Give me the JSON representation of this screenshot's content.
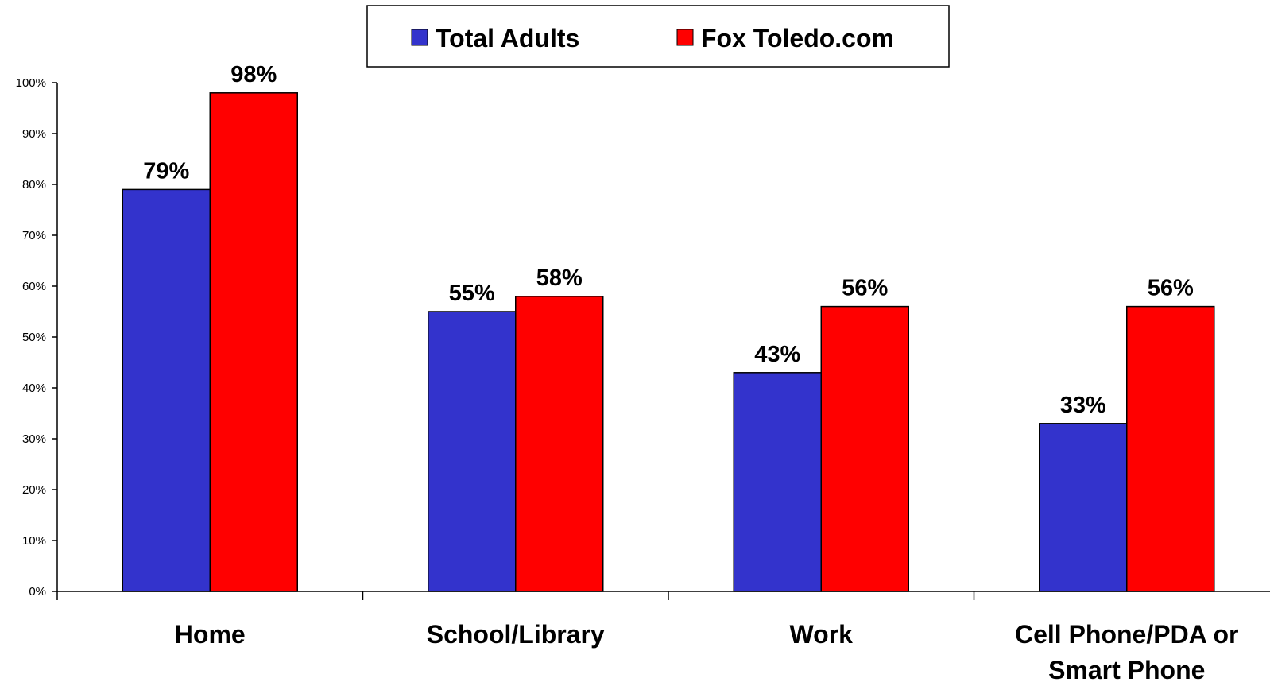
{
  "chart_data": {
    "type": "bar",
    "categories": [
      "Home",
      "School/Library",
      "Work",
      "Cell Phone/PDA or Smart Phone"
    ],
    "category_label_lines": [
      [
        "Home"
      ],
      [
        "School/Library"
      ],
      [
        "Work"
      ],
      [
        "Cell Phone/PDA or",
        "Smart Phone"
      ]
    ],
    "series": [
      {
        "name": "Total Adults",
        "values": [
          79,
          55,
          43,
          33
        ],
        "labels": [
          "79%",
          "55%",
          "43%",
          "33%"
        ],
        "color": "#3333cc"
      },
      {
        "name": "Fox Toledo.com",
        "values": [
          98,
          58,
          56,
          56
        ],
        "labels": [
          "98%",
          "58%",
          "56%",
          "56%"
        ],
        "color": "#ff0000"
      }
    ],
    "ylim": [
      0,
      100
    ],
    "yticks": [
      "0%",
      "10%",
      "20%",
      "30%",
      "40%",
      "50%",
      "60%",
      "70%",
      "80%",
      "90%",
      "100%"
    ],
    "grid": false,
    "legend": "top-center"
  }
}
